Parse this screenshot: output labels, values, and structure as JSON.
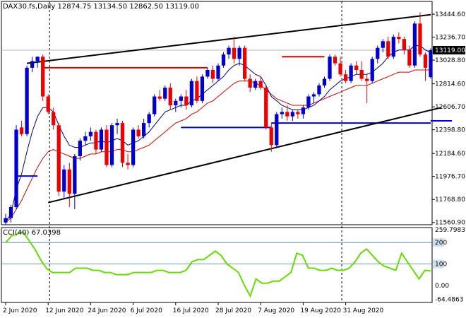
{
  "header": {
    "symbol": "DAX30.fs,Daily",
    "ohlc": "12874.75 13134.50 12862.50 13119.00"
  },
  "cci_panel": {
    "label": "CCI(40) 67.0398"
  },
  "chart_data": {
    "type": "candlestick",
    "y_ticks": [
      "13444.60",
      "13236.70",
      "13028.80",
      "12814.60",
      "12606.70",
      "12398.80",
      "12184.60",
      "11976.70",
      "11768.80",
      "11560.90"
    ],
    "y_ticks_values": [
      13444.6,
      13236.7,
      13028.8,
      12814.6,
      12606.7,
      12398.8,
      12184.6,
      11976.7,
      11768.8,
      11560.9
    ],
    "ylim": [
      11540,
      13560
    ],
    "current_price": {
      "value": 13119.0,
      "label": "13119.00"
    },
    "x_ticks": [
      {
        "label": "2 Jun 2020",
        "index": 0
      },
      {
        "label": "12 Jun 2020",
        "index": 8
      },
      {
        "label": "24 Jun 2020",
        "index": 16
      },
      {
        "label": "6 Jul 2020",
        "index": 24
      },
      {
        "label": "16 Jul 2020",
        "index": 32
      },
      {
        "label": "28 Jul 2020",
        "index": 40
      },
      {
        "label": "7 Aug 2020",
        "index": 48
      },
      {
        "label": "19 Aug 2020",
        "index": 56
      },
      {
        "label": "31 Aug 2020",
        "index": 64
      }
    ],
    "candles": [
      {
        "o": 11560,
        "h": 11640,
        "l": 11540,
        "c": 11600
      },
      {
        "o": 11600,
        "h": 11720,
        "l": 11560,
        "c": 11700
      },
      {
        "o": 11700,
        "h": 12440,
        "l": 11680,
        "c": 12400
      },
      {
        "o": 12420,
        "h": 12480,
        "l": 12340,
        "c": 12360
      },
      {
        "o": 12360,
        "h": 12980,
        "l": 12340,
        "c": 12960
      },
      {
        "o": 12960,
        "h": 13060,
        "l": 12920,
        "c": 13020
      },
      {
        "o": 13020,
        "h": 13060,
        "l": 12960,
        "c": 13060
      },
      {
        "o": 13060,
        "h": 13080,
        "l": 12660,
        "c": 12700
      },
      {
        "o": 12700,
        "h": 12720,
        "l": 12540,
        "c": 12560
      },
      {
        "o": 12560,
        "h": 12600,
        "l": 12400,
        "c": 12440
      },
      {
        "o": 12440,
        "h": 12460,
        "l": 11800,
        "c": 11840
      },
      {
        "o": 11840,
        "h": 12080,
        "l": 11780,
        "c": 12040
      },
      {
        "o": 12040,
        "h": 12100,
        "l": 11700,
        "c": 11820
      },
      {
        "o": 11820,
        "h": 12180,
        "l": 11680,
        "c": 12160
      },
      {
        "o": 12160,
        "h": 12320,
        "l": 12120,
        "c": 12300
      },
      {
        "o": 12300,
        "h": 12380,
        "l": 12260,
        "c": 12340
      },
      {
        "o": 12340,
        "h": 12420,
        "l": 12300,
        "c": 12380
      },
      {
        "o": 12380,
        "h": 12400,
        "l": 12180,
        "c": 12220
      },
      {
        "o": 12220,
        "h": 12420,
        "l": 12200,
        "c": 12400
      },
      {
        "o": 12400,
        "h": 12440,
        "l": 12060,
        "c": 12080
      },
      {
        "o": 12080,
        "h": 12460,
        "l": 12060,
        "c": 12440
      },
      {
        "o": 12440,
        "h": 12500,
        "l": 12360,
        "c": 12460
      },
      {
        "o": 12460,
        "h": 12480,
        "l": 12060,
        "c": 12100
      },
      {
        "o": 12100,
        "h": 12180,
        "l": 12040,
        "c": 12080
      },
      {
        "o": 12080,
        "h": 12420,
        "l": 12060,
        "c": 12400
      },
      {
        "o": 12400,
        "h": 12440,
        "l": 12320,
        "c": 12340
      },
      {
        "o": 12340,
        "h": 12500,
        "l": 12320,
        "c": 12460
      },
      {
        "o": 12460,
        "h": 12560,
        "l": 12420,
        "c": 12540
      },
      {
        "o": 12540,
        "h": 12720,
        "l": 12520,
        "c": 12700
      },
      {
        "o": 12700,
        "h": 12760,
        "l": 12660,
        "c": 12680
      },
      {
        "o": 12680,
        "h": 12800,
        "l": 12660,
        "c": 12780
      },
      {
        "o": 12780,
        "h": 12820,
        "l": 12580,
        "c": 12620
      },
      {
        "o": 12620,
        "h": 12680,
        "l": 12560,
        "c": 12660
      },
      {
        "o": 12660,
        "h": 12720,
        "l": 12600,
        "c": 12700
      },
      {
        "o": 12700,
        "h": 12760,
        "l": 12580,
        "c": 12620
      },
      {
        "o": 12620,
        "h": 12860,
        "l": 12600,
        "c": 12840
      },
      {
        "o": 12840,
        "h": 12880,
        "l": 12640,
        "c": 12660
      },
      {
        "o": 12660,
        "h": 12900,
        "l": 12640,
        "c": 12880
      },
      {
        "o": 12880,
        "h": 12960,
        "l": 12860,
        "c": 12940
      },
      {
        "o": 12940,
        "h": 12980,
        "l": 12820,
        "c": 12860
      },
      {
        "o": 12860,
        "h": 13000,
        "l": 12840,
        "c": 12980
      },
      {
        "o": 12980,
        "h": 13100,
        "l": 12960,
        "c": 13080
      },
      {
        "o": 13080,
        "h": 13160,
        "l": 13040,
        "c": 13140
      },
      {
        "o": 13140,
        "h": 13240,
        "l": 13000,
        "c": 13040
      },
      {
        "o": 13040,
        "h": 13160,
        "l": 12980,
        "c": 13140
      },
      {
        "o": 13140,
        "h": 13160,
        "l": 12840,
        "c": 12860
      },
      {
        "o": 12860,
        "h": 12900,
        "l": 12740,
        "c": 12780
      },
      {
        "o": 12780,
        "h": 12860,
        "l": 12760,
        "c": 12840
      },
      {
        "o": 12840,
        "h": 12880,
        "l": 12760,
        "c": 12780
      },
      {
        "o": 12780,
        "h": 12800,
        "l": 12400,
        "c": 12420
      },
      {
        "o": 12420,
        "h": 12460,
        "l": 12200,
        "c": 12260
      },
      {
        "o": 12260,
        "h": 12560,
        "l": 12240,
        "c": 12540
      },
      {
        "o": 12540,
        "h": 12600,
        "l": 12500,
        "c": 12560
      },
      {
        "o": 12560,
        "h": 12620,
        "l": 12480,
        "c": 12520
      },
      {
        "o": 12520,
        "h": 12580,
        "l": 12480,
        "c": 12560
      },
      {
        "o": 12560,
        "h": 12580,
        "l": 12500,
        "c": 12540
      },
      {
        "o": 12540,
        "h": 12620,
        "l": 12500,
        "c": 12600
      },
      {
        "o": 12600,
        "h": 12720,
        "l": 12580,
        "c": 12700
      },
      {
        "o": 12700,
        "h": 12740,
        "l": 12640,
        "c": 12720
      },
      {
        "o": 12720,
        "h": 12820,
        "l": 12700,
        "c": 12800
      },
      {
        "o": 12800,
        "h": 12880,
        "l": 12780,
        "c": 12860
      },
      {
        "o": 12860,
        "h": 13080,
        "l": 12840,
        "c": 13060
      },
      {
        "o": 13060,
        "h": 13080,
        "l": 12980,
        "c": 13000
      },
      {
        "o": 13000,
        "h": 13060,
        "l": 12880,
        "c": 12900
      },
      {
        "o": 12900,
        "h": 12940,
        "l": 12820,
        "c": 12840
      },
      {
        "o": 12840,
        "h": 13000,
        "l": 12820,
        "c": 12980
      },
      {
        "o": 12980,
        "h": 13020,
        "l": 12900,
        "c": 12940
      },
      {
        "o": 12940,
        "h": 13020,
        "l": 12840,
        "c": 12860
      },
      {
        "o": 12860,
        "h": 12900,
        "l": 12640,
        "c": 12840
      },
      {
        "o": 12840,
        "h": 13060,
        "l": 12820,
        "c": 13040
      },
      {
        "o": 13040,
        "h": 13160,
        "l": 13000,
        "c": 13140
      },
      {
        "o": 13140,
        "h": 13220,
        "l": 13100,
        "c": 13200
      },
      {
        "o": 13200,
        "h": 13240,
        "l": 13040,
        "c": 13060
      },
      {
        "o": 13060,
        "h": 13260,
        "l": 13040,
        "c": 13240
      },
      {
        "o": 13240,
        "h": 13280,
        "l": 13180,
        "c": 13220
      },
      {
        "o": 13220,
        "h": 13240,
        "l": 13080,
        "c": 13120
      },
      {
        "o": 13120,
        "h": 13160,
        "l": 12960,
        "c": 12980
      },
      {
        "o": 12980,
        "h": 13380,
        "l": 12960,
        "c": 13360
      },
      {
        "o": 13360,
        "h": 13460,
        "l": 13060,
        "c": 13080
      },
      {
        "o": 13080,
        "h": 13100,
        "l": 12840,
        "c": 12960
      },
      {
        "o": 12875,
        "h": 13135,
        "l": 12862,
        "c": 13119
      }
    ],
    "ma_fast": [
      11560,
      11640,
      11860,
      12000,
      12200,
      12380,
      12520,
      12600,
      12600,
      12560,
      12440,
      12340,
      12260,
      12240,
      12240,
      12260,
      12280,
      12280,
      12300,
      12280,
      12300,
      12320,
      12300,
      12260,
      12280,
      12300,
      12340,
      12380,
      12440,
      12500,
      12560,
      12580,
      12600,
      12620,
      12620,
      12660,
      12680,
      12720,
      12760,
      12800,
      12840,
      12880,
      12940,
      12980,
      13000,
      12980,
      12940,
      12900,
      12880,
      12800,
      12700,
      12660,
      12620,
      12600,
      12580,
      12580,
      12580,
      12600,
      12620,
      12660,
      12700,
      12760,
      12800,
      12840,
      12860,
      12880,
      12900,
      12900,
      12900,
      12920,
      12960,
      13000,
      13060,
      13100,
      13120,
      13120,
      13120,
      13160,
      13160,
      13120,
      13100
    ],
    "ma_slow": [
      11560,
      11600,
      11680,
      11760,
      11860,
      11960,
      12060,
      12140,
      12200,
      12220,
      12200,
      12180,
      12160,
      12140,
      12140,
      12160,
      12180,
      12180,
      12200,
      12200,
      12200,
      12220,
      12220,
      12200,
      12200,
      12220,
      12240,
      12260,
      12300,
      12340,
      12380,
      12420,
      12460,
      12480,
      12500,
      12540,
      12560,
      12600,
      12640,
      12660,
      12700,
      12740,
      12780,
      12820,
      12840,
      12840,
      12840,
      12820,
      12800,
      12760,
      12720,
      12680,
      12660,
      12640,
      12620,
      12620,
      12620,
      12620,
      12640,
      12660,
      12680,
      12700,
      12720,
      12740,
      12760,
      12780,
      12800,
      12800,
      12800,
      12820,
      12840,
      12860,
      12880,
      12900,
      12920,
      12920,
      12920,
      12940,
      12940,
      12940,
      12940
    ],
    "channel_upper": {
      "from": {
        "index": 4,
        "value": 13000
      },
      "to": {
        "index": 80,
        "value": 13440
      }
    },
    "channel_lower": {
      "from": {
        "index": 8,
        "value": 11740
      },
      "to": {
        "index": 82,
        "value": 12600
      }
    },
    "red_levels": [
      {
        "from": 7,
        "to": 38,
        "value": 12960
      },
      {
        "from": 52,
        "to": 60,
        "value": 13060
      }
    ],
    "blue_levels": [
      {
        "from": 2,
        "to": 6,
        "value": 11980
      },
      {
        "from": 33,
        "to": 50,
        "value": 12420
      },
      {
        "from": 50,
        "to": 80,
        "value": 12460
      },
      {
        "from": 80,
        "to": 84,
        "value": 12480
      }
    ],
    "cci": {
      "ylim": [
        -80,
        270
      ],
      "ticks": [
        {
          "label": "259.7983",
          "value": 259.8
        },
        {
          "label": "200",
          "value": 200
        },
        {
          "label": "100",
          "value": 100
        },
        {
          "label": "0.00",
          "value": 0
        },
        {
          "label": "-64.4863",
          "value": -64.5
        }
      ],
      "values": [
        200,
        230,
        240,
        250,
        210,
        170,
        120,
        80,
        60,
        60,
        60,
        60,
        80,
        80,
        80,
        70,
        70,
        60,
        60,
        50,
        50,
        50,
        60,
        60,
        60,
        60,
        70,
        70,
        60,
        60,
        60,
        70,
        110,
        120,
        120,
        140,
        160,
        140,
        100,
        80,
        60,
        0,
        -50,
        30,
        10,
        10,
        20,
        20,
        40,
        60,
        150,
        140,
        80,
        80,
        70,
        70,
        80,
        70,
        70,
        80,
        110,
        150,
        170,
        140,
        110,
        90,
        80,
        70,
        150,
        110,
        70,
        30,
        70,
        67
      ]
    }
  }
}
